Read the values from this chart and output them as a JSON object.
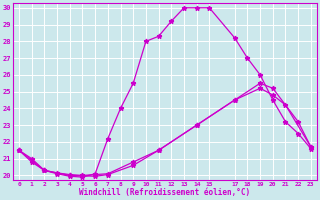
{
  "background_color": "#cce8ec",
  "line_color": "#cc00cc",
  "grid_color": "#ffffff",
  "xlabel": "Windchill (Refroidissement éolien,°C)",
  "xlim": [
    -0.5,
    23.5
  ],
  "ylim": [
    19.7,
    30.3
  ],
  "xtick_labels": [
    "0",
    "1",
    "2",
    "3",
    "4",
    "5",
    "6",
    "7",
    "8",
    "9",
    "10",
    "11",
    "12",
    "13",
    "14",
    "15",
    "17",
    "18",
    "19",
    "20",
    "21",
    "22",
    "23"
  ],
  "xtick_pos": [
    0,
    1,
    2,
    3,
    4,
    5,
    6,
    7,
    8,
    9,
    10,
    11,
    12,
    13,
    14,
    15,
    17,
    18,
    19,
    20,
    21,
    22,
    23
  ],
  "ytick_labels": [
    "20",
    "21",
    "22",
    "23",
    "24",
    "25",
    "26",
    "27",
    "28",
    "29",
    "30"
  ],
  "ytick_pos": [
    20,
    21,
    22,
    23,
    24,
    25,
    26,
    27,
    28,
    29,
    30
  ],
  "curve1_x": [
    0,
    1,
    2,
    3,
    4,
    5,
    6,
    7,
    8,
    9,
    10,
    11,
    12,
    13,
    14,
    15,
    17,
    18,
    19,
    20,
    21,
    22,
    23
  ],
  "curve1_y": [
    21.5,
    21.0,
    20.3,
    20.1,
    19.95,
    19.9,
    20.1,
    22.2,
    24.0,
    25.5,
    28.0,
    28.3,
    29.2,
    30.0,
    30.0,
    30.0,
    28.2,
    27.0,
    26.0,
    24.5,
    23.2,
    22.5,
    21.6
  ],
  "curve2_x": [
    0,
    1,
    2,
    3,
    4,
    5,
    6,
    7,
    9,
    11,
    14,
    17,
    19,
    20,
    22,
    23
  ],
  "curve2_y": [
    21.5,
    20.8,
    20.3,
    20.15,
    20.05,
    20.0,
    20.05,
    20.1,
    20.8,
    21.5,
    23.0,
    24.5,
    25.5,
    25.2,
    23.2,
    21.7
  ],
  "curve3_x": [
    0,
    2,
    4,
    6,
    7,
    9,
    11,
    14,
    17,
    19,
    20,
    21,
    23
  ],
  "curve3_y": [
    21.5,
    20.3,
    20.0,
    19.95,
    20.05,
    20.6,
    21.5,
    23.0,
    24.5,
    25.2,
    24.8,
    24.2,
    21.7
  ]
}
